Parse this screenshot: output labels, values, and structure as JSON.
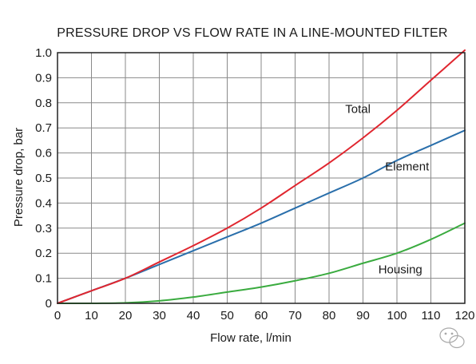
{
  "chart_data": {
    "type": "line",
    "title": "PRESSURE DROP VS FLOW RATE IN A LINE-MOUNTED FILTER",
    "xlabel": "Flow rate, l/min",
    "ylabel": "Pressure drop, bar",
    "xlim": [
      0,
      120
    ],
    "ylim": [
      0,
      1.0
    ],
    "xticks": [
      0,
      10,
      20,
      30,
      40,
      50,
      60,
      70,
      80,
      90,
      100,
      110,
      120
    ],
    "xtick_labels": [
      "0",
      "10",
      "20",
      "30",
      "40",
      "50",
      "60",
      "70",
      "80",
      "90",
      "100",
      "110",
      "120"
    ],
    "yticks": [
      0,
      0.1,
      0.2,
      0.3,
      0.4,
      0.5,
      0.6,
      0.7,
      0.8,
      0.9,
      1.0
    ],
    "ytick_labels": [
      "0",
      "0.1",
      "0.2",
      "0.3",
      "0.4",
      "0.5",
      "0.6",
      "0.7",
      "0.8",
      "0.9",
      "1.0"
    ],
    "grid": true,
    "legend": "none",
    "series": [
      {
        "name": "Total",
        "color": "#e0262f",
        "x": [
          0,
          10,
          20,
          30,
          40,
          50,
          60,
          70,
          80,
          90,
          100,
          110,
          120
        ],
        "y": [
          0,
          0.05,
          0.1,
          0.165,
          0.23,
          0.3,
          0.38,
          0.47,
          0.56,
          0.66,
          0.77,
          0.89,
          1.01
        ]
      },
      {
        "name": "Element",
        "color": "#2a6fab",
        "x": [
          0,
          10,
          20,
          30,
          40,
          50,
          60,
          70,
          80,
          90,
          100,
          110,
          120
        ],
        "y": [
          0,
          0.05,
          0.1,
          0.155,
          0.21,
          0.265,
          0.32,
          0.38,
          0.44,
          0.5,
          0.57,
          0.63,
          0.69
        ]
      },
      {
        "name": "Housing",
        "color": "#3aab3f",
        "x": [
          0,
          10,
          20,
          30,
          40,
          50,
          60,
          70,
          80,
          90,
          100,
          110,
          120
        ],
        "y": [
          0,
          0,
          0.002,
          0.01,
          0.025,
          0.045,
          0.065,
          0.09,
          0.12,
          0.16,
          0.2,
          0.255,
          0.32
        ]
      }
    ]
  }
}
